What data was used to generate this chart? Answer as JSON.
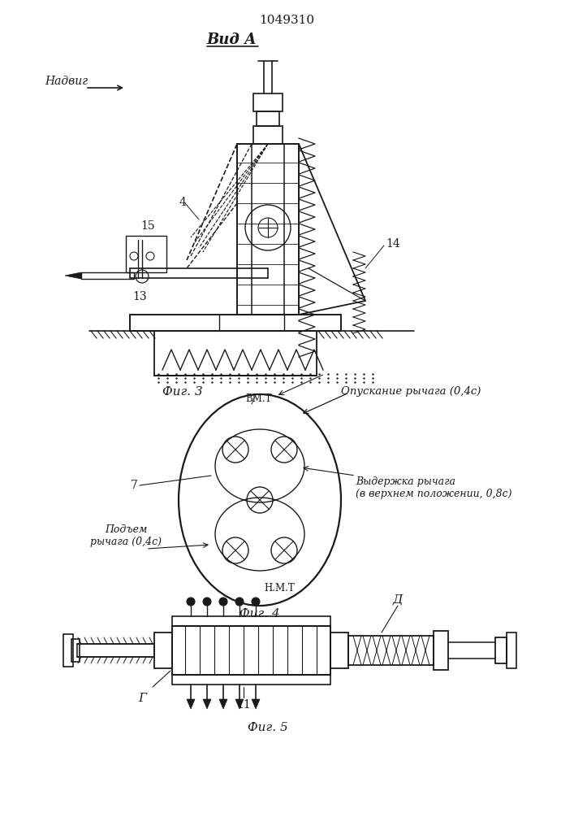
{
  "title": "1049310",
  "vid_a_label": "Вид А",
  "nadvig_label": "Надвиг",
  "fig3_label": "Фиг. 3",
  "fig4_label": "Фиг. 4",
  "fig5_label": "Фиг. 5",
  "opuskanie_label": "Опускание рычага (0,4с)",
  "viderzhka_label": "Выдержка рычага\n(в верхнем положении, 0,8с)",
  "podem_label": "Подъем\nрычага (0,4с)",
  "vmt_label": "ВМ.Т",
  "nmt_label": "Н.М.Т",
  "label_7": "7",
  "label_4": "4",
  "label_14": "14",
  "label_15": "15",
  "label_13": "13",
  "label_11": "11",
  "label_G": "Г",
  "label_D": "Д",
  "bg_color": "#ffffff",
  "line_color": "#1a1a1a",
  "text_color": "#1a1a1a"
}
